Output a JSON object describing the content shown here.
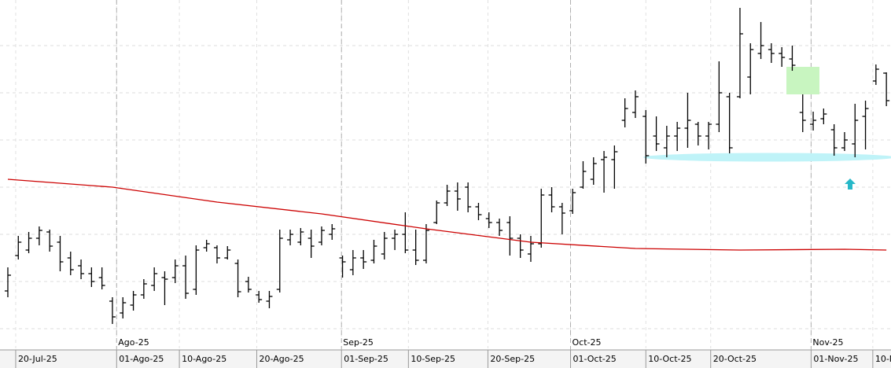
{
  "chart_data": {
    "type": "ohlc",
    "x": [
      0,
      1,
      2,
      3,
      4,
      5,
      6,
      7,
      8,
      9,
      10,
      11,
      12,
      13,
      14,
      15,
      16,
      17,
      18,
      19,
      20,
      21,
      22,
      23,
      24,
      25,
      26,
      27,
      28,
      29,
      30,
      31,
      32,
      33,
      34,
      35,
      36,
      37,
      38,
      39,
      40,
      41,
      42,
      43,
      44,
      45,
      46,
      47,
      48,
      49,
      50,
      51,
      52,
      53,
      54,
      55,
      56,
      57,
      58,
      59,
      60,
      61,
      62,
      63,
      64,
      65,
      66,
      67,
      68,
      69,
      70,
      71,
      72,
      73,
      74,
      75,
      76,
      77,
      78,
      79,
      80,
      81,
      82,
      83,
      84
    ],
    "open": [
      73,
      118,
      125,
      140,
      148,
      135,
      115,
      105,
      95,
      90,
      60,
      45,
      55,
      68,
      80,
      90,
      90,
      105,
      75,
      128,
      128,
      115,
      108,
      85,
      68,
      60,
      75,
      138,
      135,
      140,
      135,
      145,
      115,
      100,
      115,
      112,
      120,
      140,
      145,
      125,
      112,
      160,
      185,
      200,
      205,
      180,
      165,
      160,
      160,
      140,
      120,
      133,
      195,
      180,
      175,
      205,
      215,
      240,
      240,
      290,
      300,
      295,
      270,
      255,
      270,
      280,
      285,
      270,
      285,
      320,
      320,
      345,
      375,
      380,
      375,
      368,
      300,
      285,
      292,
      278,
      255,
      260,
      295,
      340,
      350
    ],
    "high": [
      103,
      143,
      148,
      155,
      151,
      143,
      123,
      113,
      103,
      103,
      65,
      65,
      73,
      88,
      103,
      98,
      113,
      118,
      131,
      138,
      131,
      130,
      113,
      91,
      73,
      73,
      151,
      151,
      153,
      151,
      155,
      158,
      118,
      125,
      125,
      138,
      148,
      151,
      173,
      151,
      158,
      188,
      208,
      211,
      211,
      185,
      173,
      165,
      168,
      145,
      143,
      203,
      205,
      185,
      203,
      238,
      243,
      251,
      258,
      318,
      328,
      303,
      295,
      283,
      288,
      325,
      288,
      288,
      365,
      325,
      433,
      388,
      415,
      388,
      383,
      385,
      323,
      301,
      305,
      285,
      275,
      311,
      315,
      361,
      351
    ],
    "low": [
      65,
      113,
      121,
      131,
      123,
      98,
      93,
      88,
      78,
      75,
      31,
      38,
      48,
      63,
      73,
      55,
      83,
      63,
      68,
      123,
      108,
      113,
      65,
      71,
      58,
      51,
      71,
      131,
      131,
      115,
      131,
      138,
      90,
      93,
      101,
      108,
      113,
      125,
      121,
      106,
      108,
      158,
      181,
      175,
      173,
      163,
      153,
      143,
      118,
      115,
      110,
      128,
      173,
      145,
      171,
      203,
      208,
      198,
      203,
      281,
      293,
      235,
      251,
      243,
      251,
      255,
      258,
      253,
      275,
      248,
      318,
      323,
      368,
      363,
      358,
      353,
      275,
      277,
      285,
      245,
      251,
      243,
      253,
      335,
      308
    ],
    "close": [
      93,
      135,
      140,
      150,
      130,
      110,
      100,
      95,
      85,
      80,
      40,
      58,
      68,
      82,
      95,
      88,
      105,
      70,
      125,
      133,
      115,
      125,
      72,
      75,
      62,
      66,
      140,
      145,
      148,
      130,
      150,
      152,
      110,
      115,
      110,
      130,
      140,
      145,
      125,
      112,
      150,
      185,
      200,
      190,
      180,
      170,
      160,
      150,
      140,
      125,
      133,
      195,
      180,
      172,
      198,
      225,
      235,
      243,
      250,
      305,
      320,
      245,
      260,
      270,
      280,
      290,
      270,
      285,
      325,
      255,
      400,
      380,
      385,
      375,
      370,
      360,
      290,
      290,
      298,
      255,
      265,
      290,
      305,
      355,
      315
    ],
    "bar_color": "#000000",
    "average": {
      "color": "#cc0000",
      "x": [
        0,
        10,
        20,
        30,
        40,
        50,
        60,
        70,
        80,
        84
      ],
      "values": [
        215,
        205,
        186,
        171,
        152,
        135,
        127,
        125,
        126,
        125
      ]
    },
    "xlim": [
      -0.75,
      84.44
    ],
    "ylim": [
      0,
      443
    ],
    "yticks": [
      25,
      85,
      145,
      205,
      265,
      325,
      385
    ],
    "grid": true,
    "xticks": [
      {
        "value": 0.75,
        "label": "20-Jul-25"
      },
      {
        "value": 10.4,
        "label": "01-Ago-25"
      },
      {
        "value": 16.4,
        "label": "10-Ago-25"
      },
      {
        "value": 23.8,
        "label": "20-Ago-25"
      },
      {
        "value": 31.9,
        "label": "01-Sep-25"
      },
      {
        "value": 38.3,
        "label": "10-Sep-25"
      },
      {
        "value": 45.9,
        "label": "20-Sep-25"
      },
      {
        "value": 53.8,
        "label": "01-Oct-25"
      },
      {
        "value": 61,
        "label": "10-Oct-25"
      },
      {
        "value": 67.2,
        "label": "20-Oct-25"
      },
      {
        "value": 76.8,
        "label": "01-Nov-25"
      },
      {
        "value": 82.7,
        "label": "10-N"
      }
    ],
    "month_ticks": [
      {
        "value": 10.4,
        "label": "Ago-25"
      },
      {
        "value": 31.9,
        "label": "Sep-25"
      },
      {
        "value": 53.8,
        "label": "Oct-25"
      },
      {
        "value": 76.8,
        "label": "Nov-25"
      }
    ]
  }
}
